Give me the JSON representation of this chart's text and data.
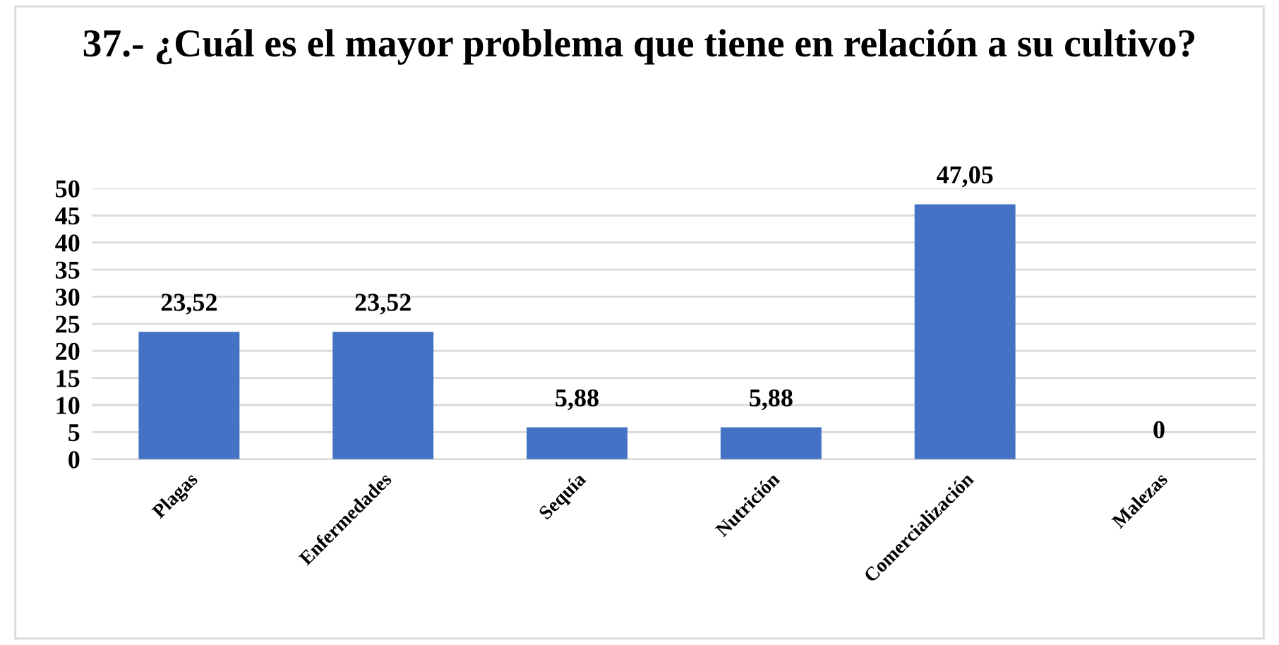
{
  "chart_data": {
    "type": "bar",
    "title": "37.- ¿Cuál es el mayor problema que tiene en relación a su cultivo?",
    "categories": [
      "Plagas",
      "Enfermedades",
      "Sequía",
      "Nutrición",
      "Comercialización",
      "Malezas"
    ],
    "values": [
      23.52,
      23.52,
      5.88,
      5.88,
      47.05,
      0
    ],
    "value_labels": [
      "23,52",
      "23,52",
      "5,88",
      "5,88",
      "47,05",
      "0"
    ],
    "color": "#4472c4",
    "ylim": [
      0,
      50
    ],
    "yticks": [
      0,
      5,
      10,
      15,
      20,
      25,
      30,
      35,
      40,
      45,
      50
    ],
    "grid": "y",
    "legend": false
  }
}
